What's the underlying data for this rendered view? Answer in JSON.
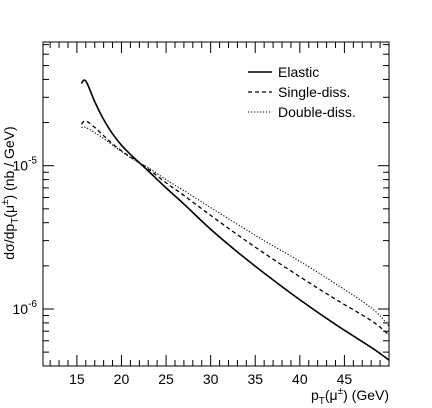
{
  "chart_data": {
    "type": "line",
    "xlabel": "p_T(μ±) (GeV)",
    "ylabel": "dσ/dp_T(μ±) (nb / GeV)",
    "xlim": [
      11.2,
      50
    ],
    "ylim": [
      4e-07,
      7.3e-05
    ],
    "y_scale": "log",
    "x_ticks": [
      15,
      20,
      25,
      30,
      35,
      40,
      45
    ],
    "y_major_ticks": [
      1e-06,
      1e-05
    ],
    "legend_position": "top-right",
    "grid": false,
    "series": [
      {
        "name": "Elastic",
        "style": "solid",
        "x": [
          15.5,
          16,
          17,
          18,
          19,
          20,
          21,
          22,
          23,
          25,
          27,
          30,
          33,
          36,
          40,
          44,
          48,
          50
        ],
        "y": [
          3.75e-05,
          3.9e-05,
          2.8e-05,
          2.1e-05,
          1.67e-05,
          1.39e-05,
          1.2e-05,
          1.05e-05,
          9.2e-06,
          7e-06,
          5.4e-06,
          3.6e-06,
          2.5e-06,
          1.78e-06,
          1.16e-06,
          7.8e-07,
          5.4e-07,
          4.4e-07
        ]
      },
      {
        "name": "Single-diss.",
        "style": "dashed",
        "x": [
          15.5,
          16,
          17,
          18,
          19,
          20,
          21,
          22,
          23,
          25,
          27,
          30,
          33,
          36,
          40,
          44,
          48,
          50
        ],
        "y": [
          1.95e-05,
          2.05e-05,
          1.85e-05,
          1.62e-05,
          1.42e-05,
          1.27e-05,
          1.15e-05,
          1.05e-05,
          9.5e-06,
          7.6e-06,
          6.2e-06,
          4.5e-06,
          3.3e-06,
          2.45e-06,
          1.68e-06,
          1.17e-06,
          8.3e-07,
          6.6e-07
        ]
      },
      {
        "name": "Double-diss.",
        "style": "dotted",
        "x": [
          15.5,
          16,
          17,
          18,
          19,
          20,
          21,
          22,
          23,
          25,
          27,
          30,
          33,
          36,
          40,
          44,
          48,
          50
        ],
        "y": [
          1.85e-05,
          1.85e-05,
          1.7e-05,
          1.55e-05,
          1.39e-05,
          1.26e-05,
          1.14e-05,
          1.05e-05,
          9.7e-06,
          8e-06,
          6.7e-06,
          5.1e-06,
          3.9e-06,
          3e-06,
          2.15e-06,
          1.5e-06,
          1.02e-06,
          7.6e-07
        ]
      }
    ]
  }
}
